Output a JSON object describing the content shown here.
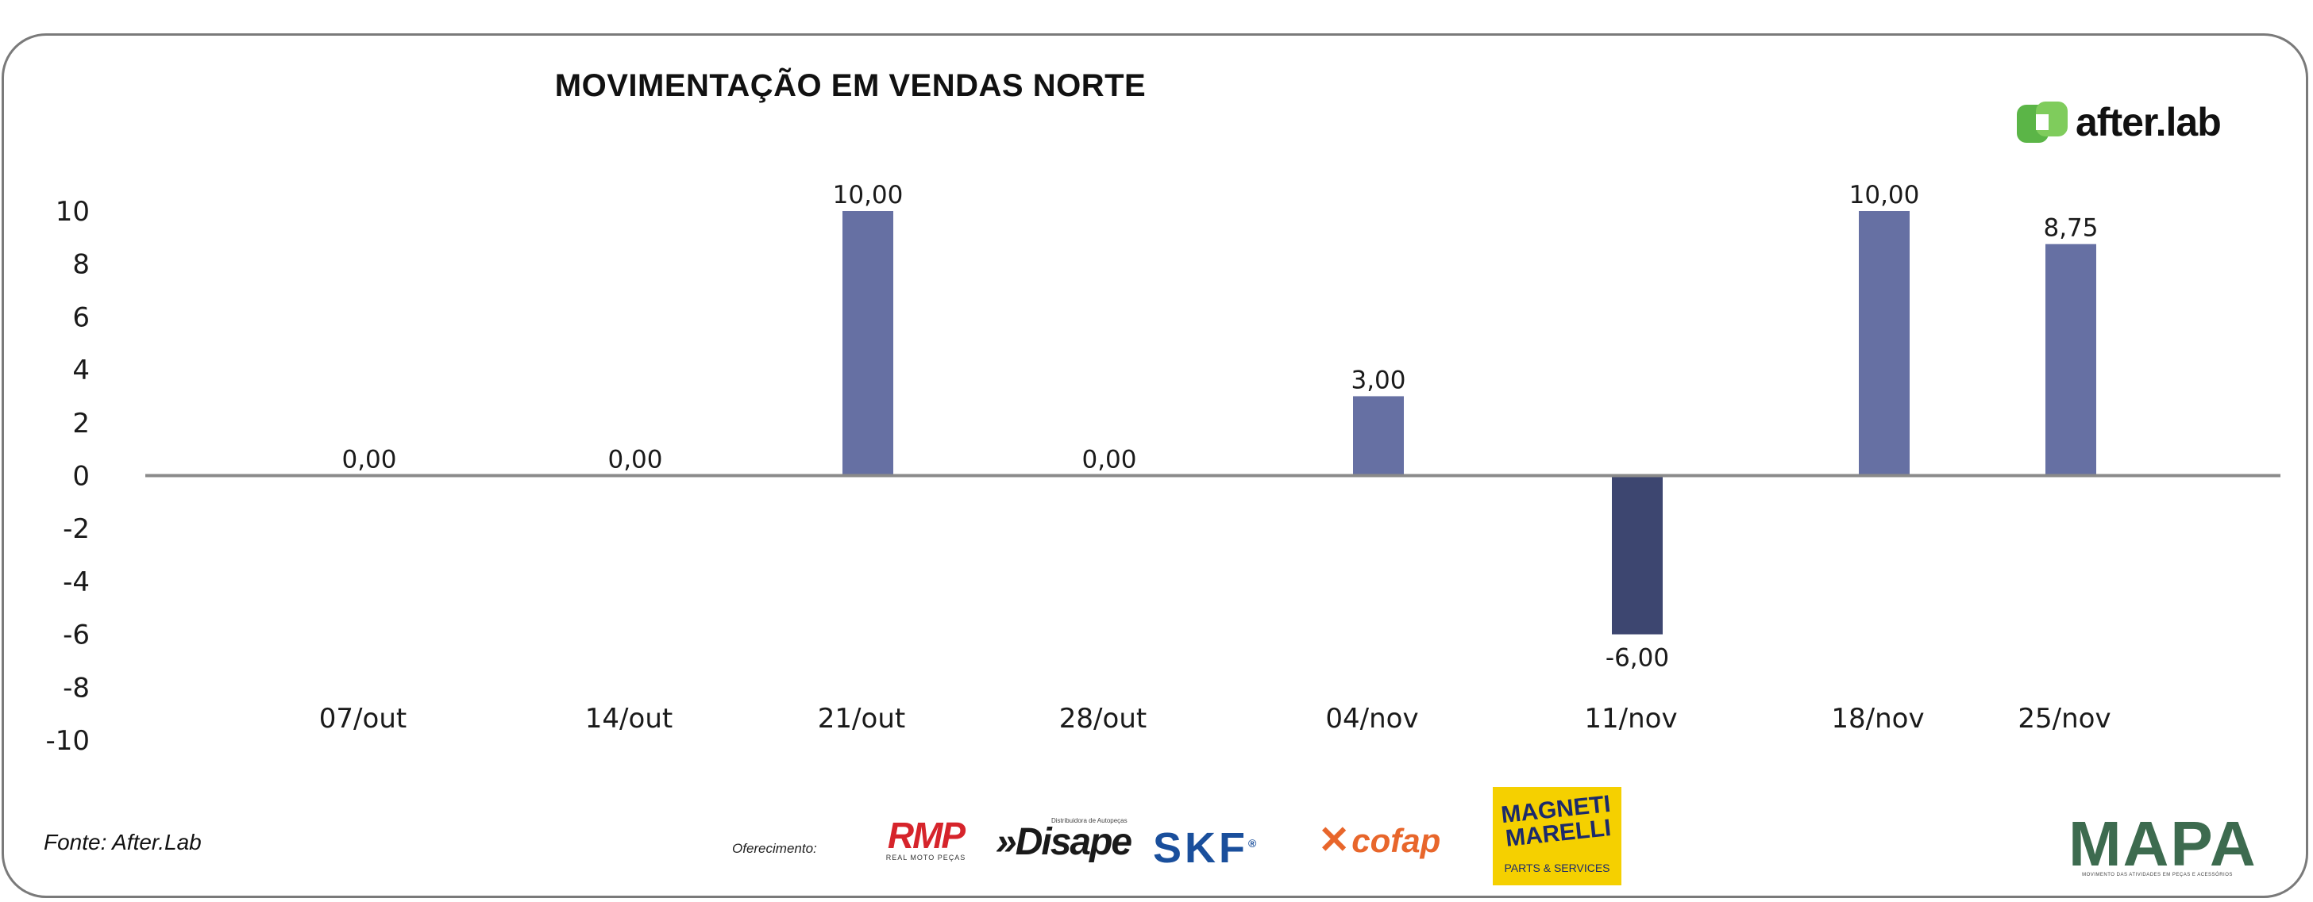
{
  "header": {
    "title": "MOVIMENTAÇÃO EM VENDAS NORTE",
    "brand": "after.lab"
  },
  "footer": {
    "source": "Fonte: After.Lab",
    "sponsor_label": "Oferecimento:",
    "sponsors": {
      "rmp": "RMP",
      "rmp_sub": "REAL MOTO PEÇAS",
      "disape_tag": "Distribuidora de Autopeças",
      "disape": "Disape",
      "skf": "SKF",
      "skf_mark": "®",
      "cofap_mark": "✕",
      "cofap": "cofap",
      "magneti": "MAGNETI MARELLI",
      "magneti_sub": "PARTS & SERVICES",
      "mapa": "MAPA",
      "mapa_sub": "MOVIMENTO DAS ATIVIDADES EM PEÇAS E ACESSÓRIOS"
    }
  },
  "colors": {
    "positive": "#6670a3",
    "negative": "#3d4670",
    "axis": "#8a8a8a",
    "brand_green": "#5bb547"
  },
  "chart_data": {
    "type": "bar",
    "title": "MOVIMENTAÇÃO EM VENDAS NORTE",
    "categories": [
      "07/out",
      "14/out",
      "21/out",
      "28/out",
      "04/nov",
      "11/nov",
      "18/nov",
      "25/nov"
    ],
    "values": [
      0,
      0,
      10,
      0,
      3,
      -6,
      10,
      8.75
    ],
    "value_labels": [
      "0,00",
      "0,00",
      "10,00",
      "0,00",
      "3,00",
      "-6,00",
      "10,00",
      "8,75"
    ],
    "y_ticks": [
      "10",
      "8",
      "6",
      "4",
      "2",
      "0",
      "-2",
      "-4",
      "-6",
      "-8",
      "-10"
    ],
    "ylim": [
      -10,
      10
    ],
    "xlabel": "",
    "ylabel": "",
    "grid": false,
    "legend": "none"
  }
}
